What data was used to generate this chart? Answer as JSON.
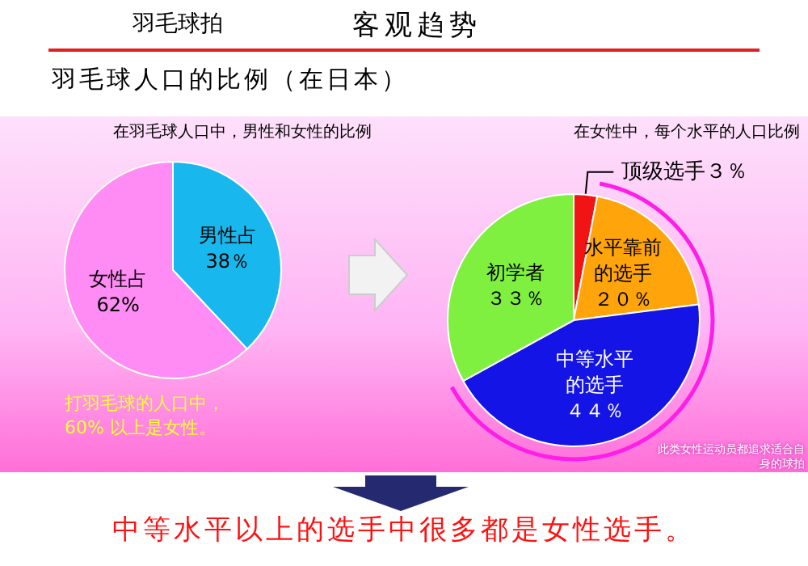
{
  "chart_data": [
    {
      "type": "pie",
      "title": "在羽毛球人口中，男性和女性的比例",
      "categories": [
        "男性占",
        "女性占"
      ],
      "values": [
        38,
        62
      ],
      "colors": [
        "#18b8ee",
        "#ff8cf4"
      ],
      "value_labels": [
        "38％",
        "62%"
      ],
      "annotations": [
        "羽毛球拍",
        "客观趋势",
        "羽毛球人口的比例（在日本）",
        "打羽毛球的人口中，\n60% 以上是女性。",
        "中等水平以上的选手中很多都是女性选手。"
      ]
    },
    {
      "type": "pie",
      "title": "在女性中，每个水平的人口比例",
      "categories": [
        "顶级选手",
        "水平靠前的选手",
        "中等水平的选手",
        "初学者"
      ],
      "values": [
        3,
        20,
        44,
        33
      ],
      "colors": [
        "#f01414",
        "#ffa40a",
        "#1414e6",
        "#80f040"
      ],
      "value_labels": [
        "３％",
        "２０％",
        "４４％",
        "３３％"
      ],
      "annotations": [
        "此类女性运动员都追求适合自身的球拍"
      ]
    }
  ]
}
